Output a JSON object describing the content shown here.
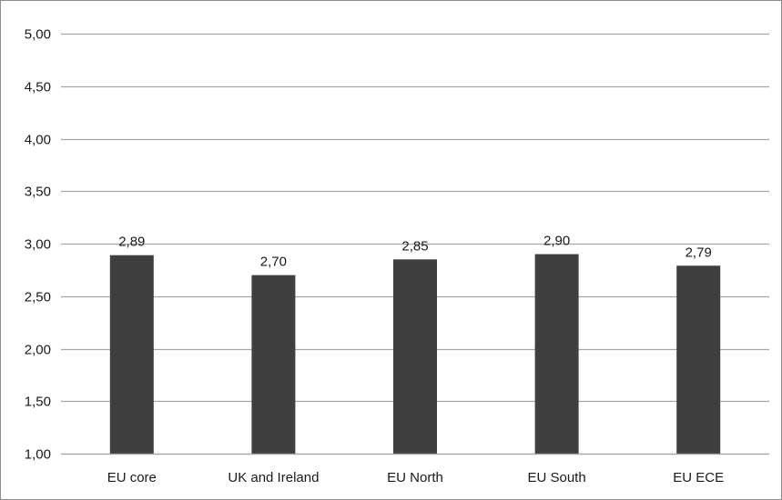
{
  "chart_data": {
    "type": "bar",
    "title": "",
    "xlabel": "",
    "ylabel": "",
    "categories": [
      "EU core",
      "UK and Ireland",
      "EU North",
      "EU South",
      "EU ECE"
    ],
    "values": [
      2.89,
      2.7,
      2.85,
      2.9,
      2.79
    ],
    "data_labels": [
      "2,89",
      "2,70",
      "2,85",
      "2,90",
      "2,79"
    ],
    "ylim": [
      1.0,
      5.0
    ],
    "yticks": [
      1.0,
      1.5,
      2.0,
      2.5,
      3.0,
      3.5,
      4.0,
      4.5,
      5.0
    ],
    "ytick_labels": [
      "1,00",
      "1,50",
      "2,00",
      "2,50",
      "3,00",
      "3,50",
      "4,00",
      "4,50",
      "5,00"
    ],
    "grid": true,
    "legend": "none",
    "colors": {
      "bar": "#3f3f3f",
      "grid": "#a6a6a6",
      "axis": "#a6a6a6"
    }
  }
}
